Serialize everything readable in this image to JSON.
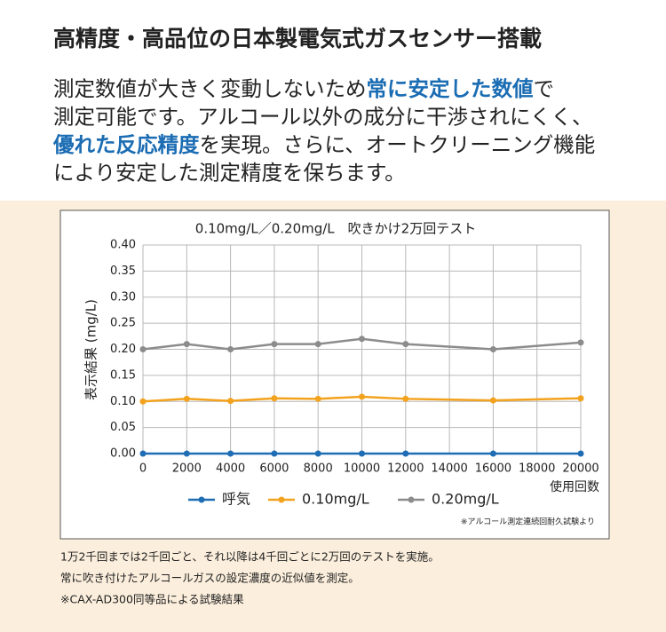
{
  "heading": "高精度・高品位の日本製電気式ガスセンサー搭載",
  "highlight_color": "#1a6cb3",
  "paragraph": [
    [
      {
        "text": "測定数値が大きく変動しないため",
        "highlight": false
      },
      {
        "text": "常に安定した数値",
        "highlight": true
      },
      {
        "text": "で",
        "highlight": false
      }
    ],
    [
      {
        "text": "測定可能です。アルコール以外の成分に干渉されにくく、",
        "highlight": false
      }
    ],
    [
      {
        "text": "優れた反応精度",
        "highlight": true
      },
      {
        "text": "を実現。さらに、オートクリーニング機能",
        "highlight": false
      }
    ],
    [
      {
        "text": "により安定した測定精度を保ちます。",
        "highlight": false
      }
    ]
  ],
  "chart_data": {
    "type": "line",
    "title": "0.10mg/L／0.20mg/L　吹きかけ2万回テスト",
    "y_label": "表示結果 (mg/L)",
    "x_label": "使用回数",
    "source": "※アルコール測定連続回耐久試験より",
    "x": [
      0,
      2000,
      4000,
      6000,
      8000,
      10000,
      12000,
      16000,
      20000
    ],
    "series": [
      {
        "name": "呼気",
        "color": "#1f6db4",
        "values": [
          0,
          0,
          0,
          0,
          0,
          0,
          0,
          0,
          0
        ]
      },
      {
        "name": "0.10mg/L",
        "color": "#f3a21d",
        "values": [
          0.1,
          0.105,
          0.101,
          0.106,
          0.105,
          0.109,
          0.105,
          0.102,
          0.106
        ]
      },
      {
        "name": "0.20mg/L",
        "color": "#8c8c8c",
        "values": [
          0.2,
          0.21,
          0.2,
          0.21,
          0.21,
          0.22,
          0.21,
          0.2,
          0.213
        ]
      }
    ],
    "xlim": [
      0,
      20000
    ],
    "xticks": [
      0,
      2000,
      4000,
      6000,
      8000,
      10000,
      12000,
      14000,
      16000,
      18000,
      20000
    ],
    "ylim": [
      0,
      0.4
    ],
    "yticks": [
      {
        "value": 0,
        "label": "0.00"
      },
      0.05,
      {
        "value": 0.1,
        "label": "0.10"
      },
      0.15,
      {
        "value": 0.2,
        "label": "0.20"
      },
      0.25,
      {
        "value": 0.3,
        "label": "0.30"
      },
      0.35,
      {
        "value": 0.4,
        "label": "0.40"
      }
    ],
    "grid": true,
    "legend": "bottom"
  },
  "notes": [
    "1万2千回までは2千回ごと、それ以降は4千回ごとに2万回のテストを実施。",
    "常に吹き付けたアルコールガスの設定濃度の近似値を測定。",
    "※CAX-AD300同等品による試験結果"
  ]
}
